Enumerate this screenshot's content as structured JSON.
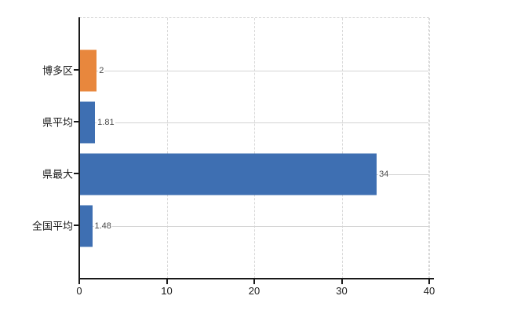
{
  "chart_data": {
    "type": "bar",
    "orientation": "horizontal",
    "title": "",
    "categories": [
      "博多区",
      "県平均",
      "県最大",
      "全国平均"
    ],
    "values": [
      2,
      1.81,
      34,
      1.48
    ],
    "value_labels": [
      "2",
      "1.81",
      "34",
      "1.48"
    ],
    "bar_colors": [
      "#E8873D",
      "#3E6FB2",
      "#3E6FB2",
      "#3E6FB2"
    ],
    "xlabel": "",
    "ylabel": "",
    "xlim": [
      0,
      40
    ],
    "x_ticks": [
      0,
      10,
      20,
      30,
      40
    ],
    "x_tick_labels": [
      "0",
      "10",
      "20",
      "30",
      "40"
    ],
    "grid": {
      "vertical": "dashed light gray at each x tick",
      "horizontal": "solid light gray line through each category center",
      "plot_border": "dashed light gray on top and right"
    },
    "legend": null,
    "axis_color": "#1a1a1a",
    "gridline_color": "#d9d9d9",
    "value_label_color": "#4a4a4a"
  }
}
